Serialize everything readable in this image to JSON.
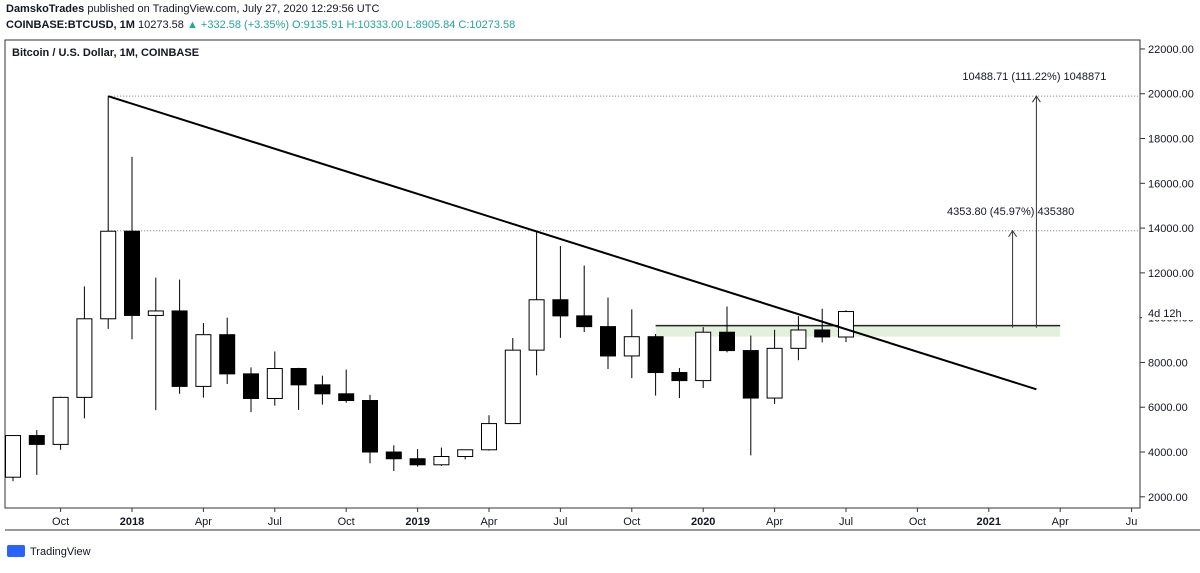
{
  "header": {
    "author": "DamskoTrades",
    "published": "published on TradingView.com, July 27, 2020 12:29:56 UTC",
    "symbol": "COINBASE:BTCUSD, 1M",
    "last": "10273.58",
    "change": "▲ +332.58 (+3.35%)",
    "ohlc_text": "O:9135.91 H:10333.00 L:8905.84 C:10273.58"
  },
  "footer": {
    "brand": "TradingView"
  },
  "chart_data": {
    "type": "candlestick",
    "title": "Bitcoin / U.S. Dollar, 1M, COINBASE",
    "x": [
      "2017-08",
      "2017-09",
      "2017-10",
      "2017-11",
      "2017-12",
      "2018-01",
      "2018-02",
      "2018-03",
      "2018-04",
      "2018-05",
      "2018-06",
      "2018-07",
      "2018-08",
      "2018-09",
      "2018-10",
      "2018-11",
      "2018-12",
      "2019-01",
      "2019-02",
      "2019-03",
      "2019-04",
      "2019-05",
      "2019-06",
      "2019-07",
      "2019-08",
      "2019-09",
      "2019-10",
      "2019-11",
      "2019-12",
      "2020-01",
      "2020-02",
      "2020-03",
      "2020-04",
      "2020-05",
      "2020-06",
      "2020-07"
    ],
    "open": [
      2875,
      4735,
      4340,
      6440,
      9950,
      13860,
      10100,
      10300,
      6930,
      9240,
      7490,
      6390,
      7730,
      7000,
      6600,
      6300,
      4000,
      3700,
      3430,
      3800,
      4100,
      5270,
      8550,
      10800,
      10080,
      9600,
      8290,
      9150,
      7550,
      7190,
      9350,
      8530,
      6410,
      8630,
      9450,
      9135.91
    ],
    "high": [
      4750,
      4980,
      6470,
      11400,
      19891,
      17178,
      11790,
      11700,
      9760,
      10000,
      7780,
      8490,
      7760,
      7410,
      7680,
      6550,
      4300,
      4130,
      4200,
      4100,
      5640,
      9090,
      13880,
      13200,
      12330,
      10900,
      10370,
      9270,
      7750,
      9580,
      10500,
      9200,
      9460,
      10070,
      10400,
      10333
    ],
    "low": [
      2700,
      2980,
      4100,
      5500,
      9500,
      9035,
      5873,
      6600,
      6430,
      7040,
      5780,
      6070,
      5880,
      6120,
      6200,
      3500,
      3150,
      3350,
      3380,
      3670,
      4060,
      5260,
      7420,
      9100,
      9360,
      7710,
      7300,
      6520,
      6410,
      6860,
      8450,
      3850,
      6150,
      8100,
      8900,
      8905.84
    ],
    "close": [
      4735,
      4340,
      6440,
      9950,
      13860,
      10100,
      10300,
      6930,
      9240,
      7490,
      6390,
      7730,
      7000,
      6600,
      6300,
      4000,
      3700,
      3430,
      3800,
      4100,
      5270,
      8550,
      10800,
      10080,
      9600,
      8290,
      9150,
      7550,
      7190,
      9350,
      8530,
      6410,
      8630,
      9450,
      9140,
      10273.58
    ],
    "up_color": "#ffffff",
    "down_color": "#000000",
    "ylim": [
      1500,
      22400
    ],
    "yticks": [
      {
        "value": 2000,
        "label": "2000.00"
      },
      {
        "value": 4000,
        "label": "4000.00"
      },
      {
        "value": 6000,
        "label": "6000.00"
      },
      {
        "value": 8000,
        "label": "8000.00"
      },
      {
        "value": 10000,
        "label": "10000.00"
      },
      {
        "value": 12000,
        "label": "12000.00"
      },
      {
        "value": 14000,
        "label": "14000.00"
      },
      {
        "value": 16000,
        "label": "16000.00"
      },
      {
        "value": 18000,
        "label": "18000.00"
      },
      {
        "value": 20000,
        "label": "20000.00"
      },
      {
        "value": 22000,
        "label": "22000.00"
      }
    ],
    "xticks": [
      {
        "value": "2017-10",
        "label": "Oct"
      },
      {
        "value": "2018-01",
        "label": "2018"
      },
      {
        "value": "2018-04",
        "label": "Apr"
      },
      {
        "value": "2018-07",
        "label": "Jul"
      },
      {
        "value": "2018-10",
        "label": "Oct"
      },
      {
        "value": "2019-01",
        "label": "2019"
      },
      {
        "value": "2019-04",
        "label": "Apr"
      },
      {
        "value": "2019-07",
        "label": "Jul"
      },
      {
        "value": "2019-10",
        "label": "Oct"
      },
      {
        "value": "2020-01",
        "label": "2020"
      },
      {
        "value": "2020-04",
        "label": "Apr"
      },
      {
        "value": "2020-07",
        "label": "Jul"
      },
      {
        "value": "2020-10",
        "label": "Oct"
      },
      {
        "value": "2021-01",
        "label": "2021"
      },
      {
        "value": "2021-04",
        "label": "Apr"
      },
      {
        "value": "2021-07",
        "label": "Ju"
      }
    ],
    "countdown": "4d 12h",
    "trendline": {
      "x": [
        "2017-12",
        "2021-03"
      ],
      "values": [
        19891,
        6800
      ]
    },
    "levels": [
      19891,
      13880
    ],
    "zone": {
      "x": [
        "2019-11",
        "2021-04"
      ],
      "values": [
        9150,
        9644
      ]
    },
    "arrows": [
      {
        "x": "2021-03",
        "values": [
          9550,
          19891
        ],
        "label": "10488.71 (111.22%) 1048871"
      },
      {
        "x": "2021-02",
        "values": [
          9550,
          13880
        ],
        "label": "4353.80 (45.97%) 435380"
      }
    ]
  }
}
